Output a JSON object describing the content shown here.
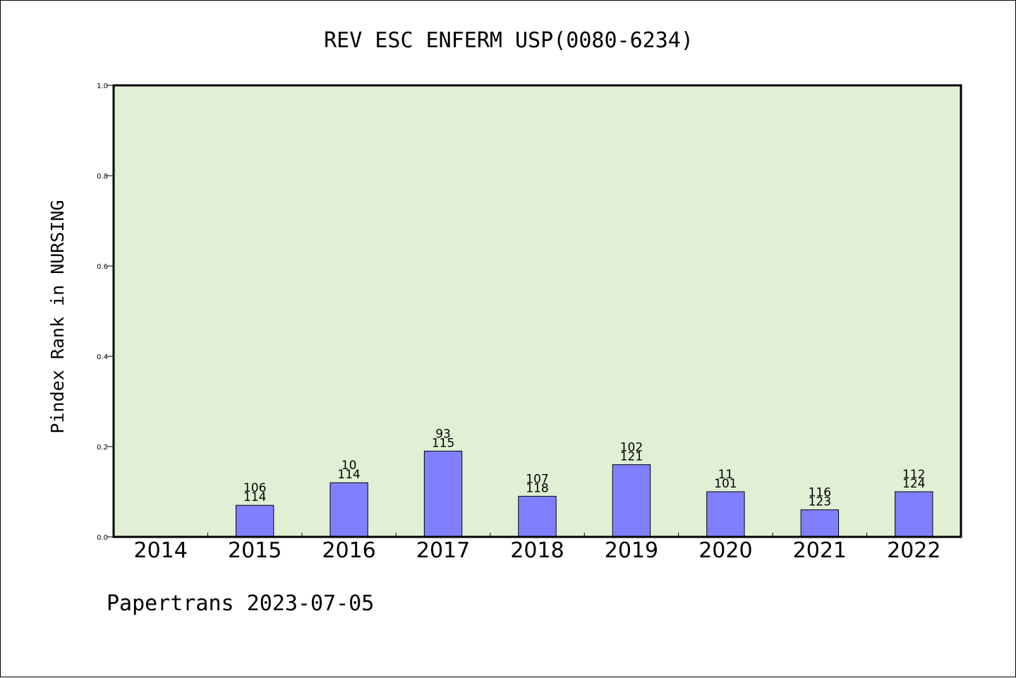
{
  "chart_data": {
    "type": "bar",
    "title": "REV ESC ENFERM USP(0080-6234)",
    "xlabel": "",
    "ylabel": "Pindex Rank in NURSING",
    "ylim": [
      0,
      1.0
    ],
    "yticks": [
      "0.0",
      "0.2",
      "0.4",
      "0.6",
      "0.8",
      "1.0"
    ],
    "categories": [
      "2014",
      "2015",
      "2016",
      "2017",
      "2018",
      "2019",
      "2020",
      "2021",
      "2022"
    ],
    "values": [
      null,
      0.07,
      0.12,
      0.19,
      0.09,
      0.16,
      0.1,
      0.06,
      0.1
    ],
    "labels_top": [
      "",
      "106",
      "10",
      "93",
      "107",
      "102",
      "11",
      "116",
      "112"
    ],
    "labels_bottom": [
      "",
      "114",
      "114",
      "115",
      "118",
      "121",
      "101",
      "123",
      "124"
    ],
    "bar_color": "#8080ff",
    "plot_background": "#e1efd5",
    "grid": false,
    "footer": "Papertrans 2023-07-05"
  }
}
